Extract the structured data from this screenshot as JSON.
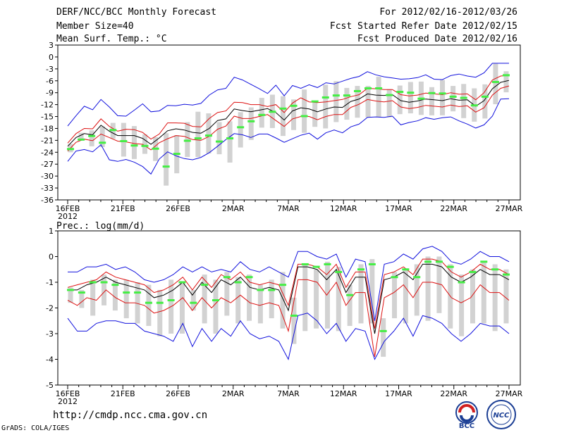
{
  "header": {
    "title": "DERF/NCC/BCC Monthly Forecast",
    "member_size": "Member Size=40",
    "variable": "Mean Surf. Temp.: °C",
    "period": "For 2012/02/16-2012/03/26",
    "started": "Fcst Started Refer Date 2012/02/15",
    "produced": "Fcst Produced Date 2012/02/16"
  },
  "footer": {
    "url": "http://cmdp.ncc.cma.gov.cn",
    "grads": "GrADS: COLA/IGES",
    "logo_left": "BCC",
    "logo_right": "NCC"
  },
  "colors": {
    "box": "#d2d2d2",
    "median": "#44ee44",
    "mean": "#000000",
    "inner": "#dd1111",
    "outer": "#1111dd"
  },
  "chart_data": [
    {
      "type": "line",
      "title": "Mean Surf. Temp.: °C",
      "ylim": [
        -36,
        3
      ],
      "yticks": [
        3,
        0,
        -3,
        -6,
        -9,
        -12,
        -15,
        -18,
        -21,
        -24,
        -27,
        -30,
        -33,
        -36
      ],
      "x_tick_labels": [
        "16FEB",
        "21FEB",
        "26FEB",
        "2MAR",
        "7MAR",
        "12MAR",
        "17MAR",
        "22MAR",
        "27MAR"
      ],
      "x_year_label": "2012",
      "days": 40,
      "series": [
        {
          "name": "ensemble mean",
          "values": [
            -22.5,
            -20.3,
            -19.3,
            -19.6,
            -17.2,
            -18.7,
            -19.8,
            -19.8,
            -19.8,
            -20.5,
            -22.0,
            -20.4,
            -18.6,
            -18.1,
            -18.4,
            -19.0,
            -19.2,
            -18.0,
            -16.0,
            -15.6,
            -13.1,
            -13.5,
            -13.8,
            -13.4,
            -13.0,
            -14.0,
            -15.9,
            -13.6,
            -12.8,
            -13.1,
            -13.8,
            -13.1,
            -12.6,
            -12.7,
            -11.2,
            -10.6,
            -9.3,
            -9.6,
            -9.7,
            -9.5,
            -11.0,
            -11.4,
            -11.1,
            -10.6,
            -10.8,
            -11.0,
            -10.5,
            -10.9,
            -10.8,
            -12.4,
            -11.0,
            -8.0,
            -6.4,
            -5.9
          ]
        },
        {
          "name": "mean + spread",
          "values": [
            -21.7,
            -19.3,
            -18.0,
            -18.1,
            -15.6,
            -17.5,
            -18.7,
            -18.2,
            -18.3,
            -19.0,
            -20.7,
            -19.4,
            -16.6,
            -16.6,
            -16.7,
            -17.5,
            -17.6,
            -15.5,
            -14.0,
            -13.6,
            -11.4,
            -11.5,
            -12.0,
            -12.0,
            -12.5,
            -12.0,
            -14.0,
            -11.6,
            -10.3,
            -11.3,
            -11.5,
            -11.3,
            -11.0,
            -10.7,
            -10.0,
            -9.5,
            -7.9,
            -8.0,
            -8.2,
            -8.2,
            -9.5,
            -9.8,
            -9.6,
            -9.1,
            -9.3,
            -9.5,
            -9.0,
            -9.4,
            -9.3,
            -10.8,
            -9.0,
            -5.8,
            -4.8,
            -4.6
          ]
        },
        {
          "name": "mean - spread",
          "values": [
            -23.7,
            -21.5,
            -20.7,
            -21.1,
            -19.4,
            -20.3,
            -21.2,
            -21.4,
            -21.8,
            -22.0,
            -23.4,
            -21.6,
            -20.6,
            -19.8,
            -20.0,
            -20.8,
            -21.0,
            -20.0,
            -18.2,
            -17.4,
            -14.9,
            -15.5,
            -15.5,
            -15.0,
            -14.5,
            -16.0,
            -17.5,
            -15.6,
            -15.0,
            -15.0,
            -15.8,
            -15.0,
            -14.5,
            -14.5,
            -12.7,
            -11.9,
            -10.7,
            -11.1,
            -11.3,
            -11.0,
            -12.6,
            -13.0,
            -12.7,
            -12.2,
            -12.4,
            -12.6,
            -12.1,
            -12.5,
            -12.3,
            -13.9,
            -12.8,
            -9.6,
            -7.9,
            -7.3
          ]
        },
        {
          "name": "ensemble max",
          "values": [
            -17.4,
            -14.8,
            -12.4,
            -13.3,
            -10.7,
            -12.6,
            -14.8,
            -14.9,
            -13.4,
            -11.8,
            -13.8,
            -13.6,
            -12.2,
            -12.3,
            -11.9,
            -12.1,
            -11.7,
            -9.6,
            -8.3,
            -7.9,
            -5.1,
            -5.8,
            -6.9,
            -8.0,
            -9.2,
            -7.1,
            -9.8,
            -7.2,
            -7.9,
            -7.0,
            -7.7,
            -6.5,
            -6.8,
            -6.1,
            -5.4,
            -4.9,
            -3.7,
            -4.5,
            -5.0,
            -5.3,
            -5.6,
            -5.5,
            -5.2,
            -4.5,
            -5.6,
            -5.7,
            -4.7,
            -4.3,
            -4.8,
            -5.1,
            -4.0,
            -1.6,
            -1.6,
            -1.6
          ]
        },
        {
          "name": "ensemble min",
          "values": [
            -26.3,
            -23.7,
            -23.3,
            -23.9,
            -22.1,
            -25.9,
            -26.3,
            -25.8,
            -26.5,
            -27.6,
            -29.5,
            -25.7,
            -23.9,
            -24.9,
            -25.6,
            -25.9,
            -25.3,
            -24.1,
            -22.5,
            -20.8,
            -19.3,
            -19.6,
            -20.3,
            -19.4,
            -19.4,
            -20.4,
            -21.5,
            -20.6,
            -19.7,
            -19.2,
            -20.7,
            -19.1,
            -18.4,
            -19.1,
            -17.6,
            -16.9,
            -15.2,
            -15.1,
            -15.2,
            -14.9,
            -17.1,
            -16.5,
            -16.1,
            -15.3,
            -15.7,
            -15.3,
            -15.1,
            -16.1,
            -16.9,
            -17.9,
            -17.1,
            -14.9,
            -10.6,
            -10.5
          ]
        }
      ],
      "medians": [
        -23.2,
        -20.8,
        -19.9,
        -21.6,
        -18.4,
        -21.2,
        -22.3,
        -22.4,
        -23.1,
        -27.6,
        -24.4,
        -21.1,
        -20.5,
        -19.8,
        -21.3,
        -20.5,
        -17.7,
        -16.2,
        -14.6,
        -13.8,
        -13.0,
        -12.3,
        -14.9,
        -11.2,
        -10.2,
        -9.7,
        -9.7,
        -8.6,
        -7.9,
        -7.9,
        -9.6,
        -8.8,
        -9.0,
        -10.5,
        -9.1,
        -9.2,
        -10.0,
        -10.3,
        -12.2,
        -10.0,
        -6.3,
        -4.6
      ],
      "boxes": [
        [
          -24.0,
          -21.9
        ],
        [
          -21.1,
          -19.1
        ],
        [
          -22.5,
          -18.5
        ],
        [
          -22.7,
          -17.5
        ],
        [
          -20.6,
          -16.6
        ],
        [
          -25.1,
          -16.6
        ],
        [
          -25.7,
          -17.4
        ],
        [
          -24.4,
          -19.5
        ],
        [
          -26.2,
          -20.2
        ],
        [
          -32.4,
          -19.2
        ],
        [
          -29.3,
          -19.7
        ],
        [
          -25.2,
          -16.4
        ],
        [
          -25.2,
          -13.8
        ],
        [
          -24.3,
          -14.2
        ],
        [
          -24.5,
          -16.4
        ],
        [
          -26.6,
          -16.2
        ],
        [
          -22.8,
          -13.9
        ],
        [
          -20.9,
          -12.7
        ],
        [
          -17.8,
          -10.3
        ],
        [
          -17.9,
          -9.5
        ],
        [
          -19.9,
          -9.9
        ],
        [
          -18.4,
          -10.7
        ],
        [
          -19.1,
          -8.2
        ],
        [
          -17.6,
          -11.0
        ],
        [
          -18.0,
          -7.0
        ],
        [
          -16.4,
          -6.1
        ],
        [
          -15.8,
          -7.8
        ],
        [
          -15.3,
          -7.3
        ],
        [
          -15.2,
          -7.3
        ],
        [
          -15.2,
          -5.0
        ],
        [
          -15.2,
          -8.1
        ],
        [
          -14.4,
          -7.2
        ],
        [
          -14.2,
          -6.3
        ],
        [
          -14.6,
          -6.2
        ],
        [
          -14.7,
          -7.6
        ],
        [
          -14.7,
          -5.8
        ],
        [
          -13.7,
          -7.3
        ],
        [
          -15.4,
          -6.8
        ],
        [
          -16.3,
          -7.9
        ],
        [
          -15.5,
          -6.9
        ],
        [
          -11.9,
          -1.7
        ],
        [
          -8.9,
          -3.6
        ]
      ]
    },
    {
      "type": "line",
      "title": "Prec.: log(mm/d)",
      "ylim": [
        -5,
        1
      ],
      "yticks": [
        1,
        0,
        -1,
        -2,
        -3,
        -4,
        -5
      ],
      "x_tick_labels": [
        "16FEB",
        "21FEB",
        "26FEB",
        "2MAR",
        "7MAR",
        "12MAR",
        "17MAR",
        "22MAR",
        "27MAR"
      ],
      "x_year_label": "2012",
      "days": 40,
      "series": [
        {
          "name": "ensemble mean",
          "values": [
            -1.3,
            -1.3,
            -1.1,
            -1.0,
            -0.8,
            -1.0,
            -1.1,
            -1.2,
            -1.3,
            -1.6,
            -1.5,
            -1.3,
            -1.0,
            -1.5,
            -1.0,
            -1.4,
            -0.9,
            -1.1,
            -0.8,
            -1.2,
            -1.3,
            -1.2,
            -1.3,
            -2.1,
            -0.4,
            -0.4,
            -0.5,
            -0.9,
            -0.5,
            -1.4,
            -0.8,
            -0.8,
            -3.0,
            -0.9,
            -0.8,
            -0.6,
            -0.9,
            -0.3,
            -0.3,
            -0.4,
            -0.8,
            -1.0,
            -0.8,
            -0.5,
            -0.7,
            -0.7,
            -0.9
          ]
        },
        {
          "name": "mean + spread",
          "values": [
            -1.2,
            -1.1,
            -1.0,
            -0.9,
            -0.6,
            -0.8,
            -0.9,
            -1.0,
            -1.1,
            -1.4,
            -1.3,
            -1.1,
            -0.8,
            -1.3,
            -0.8,
            -1.2,
            -0.7,
            -0.9,
            -0.6,
            -1.0,
            -1.1,
            -1.0,
            -1.1,
            -1.9,
            -0.3,
            -0.3,
            -0.4,
            -0.7,
            -0.3,
            -1.2,
            -0.6,
            -0.6,
            -2.8,
            -0.7,
            -0.6,
            -0.4,
            -0.7,
            -0.1,
            -0.1,
            -0.2,
            -0.6,
            -0.8,
            -0.6,
            -0.3,
            -0.5,
            -0.5,
            -0.7
          ]
        },
        {
          "name": "mean - spread",
          "values": [
            -1.7,
            -1.9,
            -1.6,
            -1.7,
            -1.3,
            -1.6,
            -1.8,
            -1.8,
            -1.9,
            -2.2,
            -2.1,
            -1.9,
            -1.6,
            -2.1,
            -1.6,
            -2.0,
            -1.6,
            -1.8,
            -1.5,
            -1.8,
            -1.9,
            -1.8,
            -1.9,
            -2.9,
            -0.9,
            -0.9,
            -1.0,
            -1.5,
            -1.0,
            -1.9,
            -1.4,
            -1.4,
            -3.9,
            -1.6,
            -1.4,
            -1.1,
            -1.6,
            -1.0,
            -1.0,
            -1.1,
            -1.6,
            -1.8,
            -1.6,
            -1.1,
            -1.4,
            -1.4,
            -1.7
          ]
        },
        {
          "name": "ensemble max",
          "values": [
            -0.6,
            -0.6,
            -0.4,
            -0.4,
            -0.3,
            -0.5,
            -0.4,
            -0.6,
            -0.9,
            -1.0,
            -0.9,
            -0.7,
            -0.4,
            -0.6,
            -0.4,
            -0.6,
            -0.5,
            -0.6,
            -0.2,
            -0.5,
            -0.6,
            -0.4,
            -0.6,
            -0.8,
            0.2,
            0.2,
            0.0,
            -0.1,
            0.1,
            -0.8,
            -0.1,
            -0.2,
            -2.5,
            -0.3,
            -0.2,
            0.1,
            -0.1,
            0.3,
            0.4,
            0.2,
            -0.2,
            -0.3,
            -0.1,
            0.2,
            0.0,
            0.0,
            -0.2
          ]
        },
        {
          "name": "ensemble min",
          "values": [
            -2.4,
            -2.9,
            -2.9,
            -2.6,
            -2.5,
            -2.5,
            -2.6,
            -2.6,
            -2.9,
            -3.0,
            -3.1,
            -3.3,
            -2.6,
            -3.5,
            -2.8,
            -3.3,
            -2.8,
            -3.1,
            -2.5,
            -3.0,
            -3.2,
            -3.1,
            -3.3,
            -4.0,
            -2.3,
            -2.2,
            -2.5,
            -3.0,
            -2.6,
            -3.3,
            -2.8,
            -2.9,
            -4.0,
            -3.3,
            -2.9,
            -2.4,
            -3.1,
            -2.3,
            -2.4,
            -2.6,
            -3.0,
            -3.3,
            -3.0,
            -2.6,
            -2.7,
            -2.7,
            -3.0
          ]
        }
      ],
      "medians": [
        -1.3,
        -1.4,
        -1.0,
        -1.0,
        -1.1,
        -1.4,
        -1.4,
        -1.8,
        -1.8,
        -1.7,
        -1.0,
        -1.8,
        -1.1,
        -1.7,
        -0.8,
        -1.0,
        -0.8,
        -1.3,
        -1.3,
        -1.1,
        -2.3,
        -0.3,
        -0.4,
        -0.3,
        -0.6,
        -1.5,
        -0.5,
        -0.3,
        -2.9,
        -0.8,
        -0.5,
        -0.8,
        -0.2,
        -0.2,
        -0.4,
        -1.0,
        -0.6,
        -0.2,
        -0.5,
        -0.7
      ],
      "boxes": [
        [
          -1.8,
          -1.2
        ],
        [
          -2.0,
          -1.3
        ],
        [
          -2.3,
          -0.9
        ],
        [
          -1.9,
          -0.7
        ],
        [
          -2.1,
          -0.9
        ],
        [
          -2.4,
          -0.9
        ],
        [
          -2.6,
          -1.0
        ],
        [
          -2.7,
          -1.1
        ],
        [
          -3.1,
          -1.3
        ],
        [
          -3.0,
          -0.9
        ],
        [
          -3.0,
          -1.0
        ],
        [
          -2.1,
          -1.3
        ],
        [
          -2.6,
          -0.7
        ],
        [
          -3.0,
          -0.9
        ],
        [
          -2.3,
          -0.6
        ],
        [
          -2.6,
          -0.8
        ],
        [
          -2.5,
          -0.7
        ],
        [
          -2.6,
          -1.1
        ],
        [
          -2.4,
          -0.9
        ],
        [
          -2.8,
          -0.6
        ],
        [
          -3.4,
          -1.6
        ],
        [
          -2.9,
          -0.3
        ],
        [
          -2.8,
          -0.5
        ],
        [
          -2.8,
          -0.2
        ],
        [
          -2.9,
          -0.4
        ],
        [
          -2.7,
          -1.1
        ],
        [
          -2.6,
          -0.3
        ],
        [
          -2.6,
          -0.1
        ],
        [
          -3.9,
          -2.4
        ],
        [
          -2.4,
          -0.6
        ],
        [
          -2.6,
          -0.5
        ],
        [
          -2.3,
          -0.3
        ],
        [
          -2.5,
          0.0
        ],
        [
          -2.2,
          0.0
        ],
        [
          -2.8,
          -0.3
        ],
        [
          -3.1,
          -0.7
        ],
        [
          -2.6,
          -0.5
        ],
        [
          -2.6,
          -0.2
        ],
        [
          -2.9,
          -0.3
        ],
        [
          -2.6,
          -0.5
        ]
      ]
    }
  ]
}
